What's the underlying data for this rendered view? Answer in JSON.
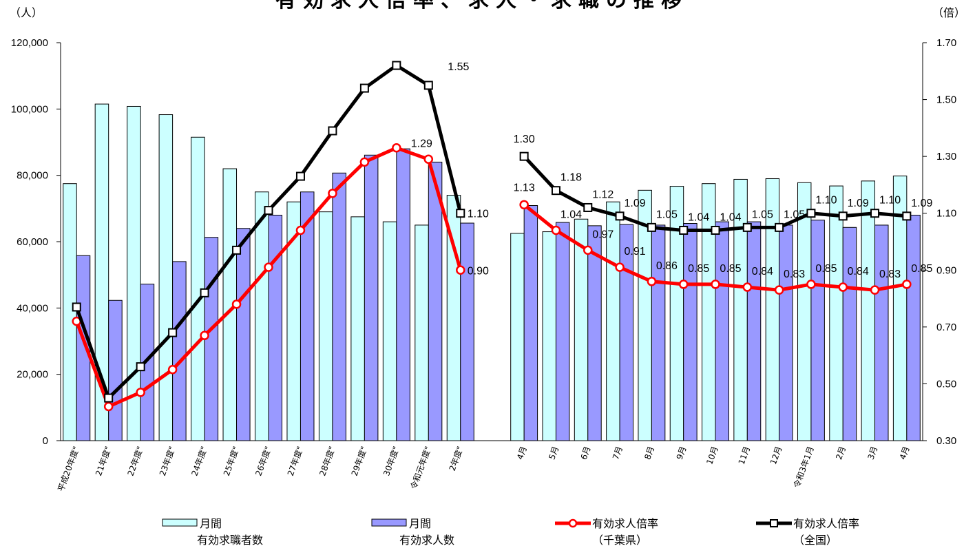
{
  "chart_data": {
    "type": "bar",
    "title": "有効求人倍率、求人・求職の推移",
    "left_unit": "（人）",
    "right_unit": "（倍）",
    "ylim_left": [
      0,
      120000
    ],
    "ylim_right": [
      0.3,
      1.7
    ],
    "yticks_left": [
      "0",
      "20,000",
      "40,000",
      "60,000",
      "80,000",
      "100,000",
      "120,000"
    ],
    "yticks_right": [
      "0.30",
      "0.50",
      "0.70",
      "0.90",
      "1.10",
      "1.30",
      "1.50",
      "1.70"
    ],
    "groups": [
      {
        "categories": [
          "平成20年度\"",
          "21年度\"",
          "22年度\"",
          "23年度\"",
          "24年度\"",
          "25年度\"",
          "26年度\"",
          "27年度\"",
          "28年度\"",
          "29年度\"",
          "30年度\"",
          "令和元年度\"",
          "2年度\""
        ]
      },
      {
        "categories": [
          "4月",
          "5月",
          "6月",
          "7月",
          "8月",
          "9月",
          "10月",
          "11月",
          "12月",
          "令和3年1月",
          "2月",
          "3月",
          "4月"
        ]
      }
    ],
    "series": [
      {
        "name": "月間\n有効求職者数",
        "kind": "bar",
        "color": "#ccffff",
        "axis": "left",
        "values": [
          77500,
          101500,
          100800,
          98300,
          91500,
          82000,
          75000,
          72000,
          69000,
          67500,
          66000,
          65000,
          74000,
          62500,
          63000,
          66800,
          72000,
          75500,
          76700,
          77500,
          78800,
          79000,
          77800,
          76800,
          78300,
          79800
        ]
      },
      {
        "name": "月間\n有効求人数",
        "kind": "bar",
        "color": "#9999ff",
        "axis": "left",
        "values": [
          55800,
          42300,
          47200,
          54000,
          61300,
          64000,
          68000,
          75000,
          80700,
          86100,
          88000,
          84000,
          65600,
          70900,
          65800,
          64800,
          65200,
          65000,
          65500,
          66000,
          66000,
          65000,
          66500,
          64300,
          65000,
          68000
        ]
      },
      {
        "name": "有効求人倍率\n（千葉県）",
        "kind": "line",
        "color": "#ff0000",
        "axis": "right",
        "values": [
          0.72,
          0.42,
          0.47,
          0.55,
          0.67,
          0.78,
          0.91,
          1.04,
          1.17,
          1.28,
          1.33,
          1.29,
          0.9,
          1.13,
          1.04,
          0.97,
          0.91,
          0.86,
          0.85,
          0.85,
          0.84,
          0.83,
          0.85,
          0.84,
          0.83,
          0.85
        ],
        "labels": [
          "",
          "",
          "",
          "",
          "",
          "",
          "",
          "",
          "",
          "",
          "",
          "1.29",
          "0.90",
          "1.13",
          "1.04",
          "0.97",
          "0.91",
          "0.86",
          "0.85",
          "0.85",
          "0.84",
          "0.83",
          "0.85",
          "0.84",
          "0.83",
          "0.85"
        ]
      },
      {
        "name": "有効求人倍率\n（全国）",
        "kind": "line",
        "color": "#000000",
        "axis": "right",
        "values": [
          0.77,
          0.45,
          0.56,
          0.68,
          0.82,
          0.97,
          1.11,
          1.23,
          1.39,
          1.54,
          1.62,
          1.55,
          1.1,
          1.3,
          1.18,
          1.12,
          1.09,
          1.05,
          1.04,
          1.04,
          1.05,
          1.05,
          1.1,
          1.09,
          1.1,
          1.09
        ],
        "labels": [
          "",
          "",
          "",
          "",
          "",
          "",
          "",
          "",
          "",
          "",
          "",
          "1.55",
          "1.10",
          "1.30",
          "1.18",
          "1.12",
          "1.09",
          "1.05",
          "1.04",
          "1.04",
          "1.05",
          "1.05",
          "1.10",
          "1.09",
          "1.10",
          "1.09"
        ]
      }
    ],
    "legend": [
      {
        "line1": "月間",
        "line2": "有効求職者数"
      },
      {
        "line1": "月間",
        "line2": "有効求人数"
      },
      {
        "line1": "有効求人倍率",
        "line2": "（千葉県）"
      },
      {
        "line1": "有効求人倍率",
        "line2": "（全国）"
      }
    ]
  }
}
